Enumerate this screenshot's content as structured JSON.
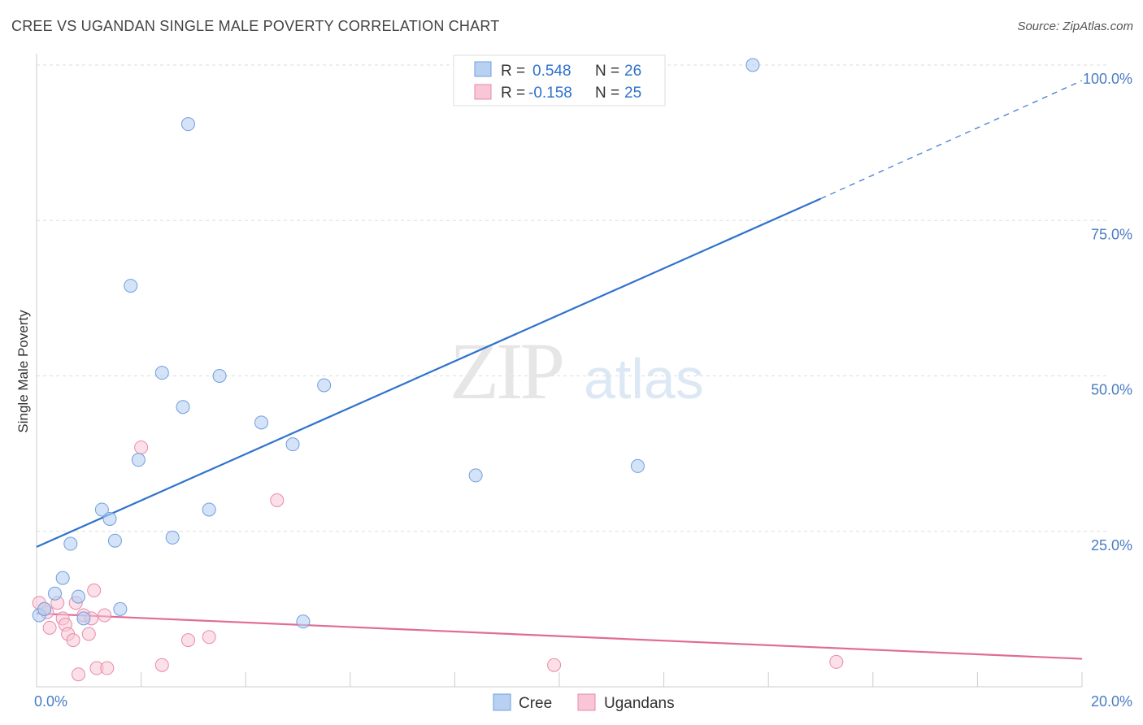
{
  "header": {
    "title": "CREE VS UGANDAN SINGLE MALE POVERTY CORRELATION CHART",
    "source": "Source: ZipAtlas.com"
  },
  "watermark": {
    "zip": "ZIP",
    "atlas": "atlas"
  },
  "colors": {
    "cree": "#6f9fdd",
    "cree_fill": "#b8d0f2",
    "cree_line": "#2f72cc",
    "ugandans": "#e98aaa",
    "ugandans_fill": "#f8c6d6",
    "ugandans_line": "#e06c96",
    "axis_label": "#4a7cc4",
    "grid": "#dddddd"
  },
  "legend": {
    "rows": [
      {
        "r_label": "R =",
        "r_value": "0.548",
        "n_label": "N =",
        "n_value": "26"
      },
      {
        "r_label": "R =",
        "r_value": "-0.158",
        "n_label": "N =",
        "n_value": "25"
      }
    ]
  },
  "chart_data": {
    "type": "scatter",
    "title": "CREE VS UGANDAN SINGLE MALE POVERTY CORRELATION CHART",
    "xlabel": "",
    "ylabel": "Single Male Poverty",
    "xlim": [
      0,
      20
    ],
    "ylim": [
      0,
      100
    ],
    "x_tick_labels": [
      "0.0%",
      "20.0%"
    ],
    "y_ticks": [
      25,
      50,
      75,
      100
    ],
    "y_tick_labels": [
      "25.0%",
      "50.0%",
      "75.0%",
      "100.0%"
    ],
    "grid": true,
    "legend_position": "bottom",
    "series": [
      {
        "name": "Cree",
        "r": 0.548,
        "n": 26,
        "points": [
          [
            0.05,
            11.5
          ],
          [
            0.15,
            12.5
          ],
          [
            0.35,
            15.0
          ],
          [
            0.5,
            17.5
          ],
          [
            0.65,
            23.0
          ],
          [
            0.8,
            14.5
          ],
          [
            0.9,
            11.0
          ],
          [
            1.25,
            28.5
          ],
          [
            1.4,
            27.0
          ],
          [
            1.5,
            23.5
          ],
          [
            1.6,
            12.5
          ],
          [
            1.8,
            64.5
          ],
          [
            1.95,
            36.5
          ],
          [
            2.4,
            50.5
          ],
          [
            2.6,
            24.0
          ],
          [
            2.8,
            45.0
          ],
          [
            2.9,
            90.5
          ],
          [
            3.3,
            28.5
          ],
          [
            3.5,
            50.0
          ],
          [
            4.3,
            42.5
          ],
          [
            4.9,
            39.0
          ],
          [
            5.1,
            10.5
          ],
          [
            5.5,
            48.5
          ],
          [
            8.4,
            34.0
          ],
          [
            11.5,
            35.5
          ],
          [
            13.7,
            100.0
          ]
        ],
        "trend": {
          "x0": 0,
          "y0": 22.5,
          "x1": 15.0,
          "y1": 78.5,
          "dash_x1": 20.0,
          "dash_y1": 97.5
        }
      },
      {
        "name": "Ugandans",
        "r": -0.158,
        "n": 25,
        "points": [
          [
            0.05,
            13.5
          ],
          [
            0.2,
            12.0
          ],
          [
            0.25,
            9.5
          ],
          [
            0.4,
            13.5
          ],
          [
            0.5,
            11.0
          ],
          [
            0.55,
            10.0
          ],
          [
            0.6,
            8.5
          ],
          [
            0.7,
            7.5
          ],
          [
            0.75,
            13.5
          ],
          [
            0.8,
            2.0
          ],
          [
            0.9,
            11.5
          ],
          [
            1.0,
            8.5
          ],
          [
            1.05,
            11.0
          ],
          [
            1.1,
            15.5
          ],
          [
            1.15,
            3.0
          ],
          [
            1.3,
            11.5
          ],
          [
            1.35,
            3.0
          ],
          [
            2.0,
            38.5
          ],
          [
            2.4,
            3.5
          ],
          [
            2.9,
            7.5
          ],
          [
            3.3,
            8.0
          ],
          [
            4.6,
            30.0
          ],
          [
            9.9,
            3.5
          ],
          [
            15.3,
            4.0
          ],
          [
            0.15,
            12.5
          ]
        ],
        "trend": {
          "x0": 0,
          "y0": 11.8,
          "x1": 20.0,
          "y1": 4.5
        }
      }
    ]
  }
}
